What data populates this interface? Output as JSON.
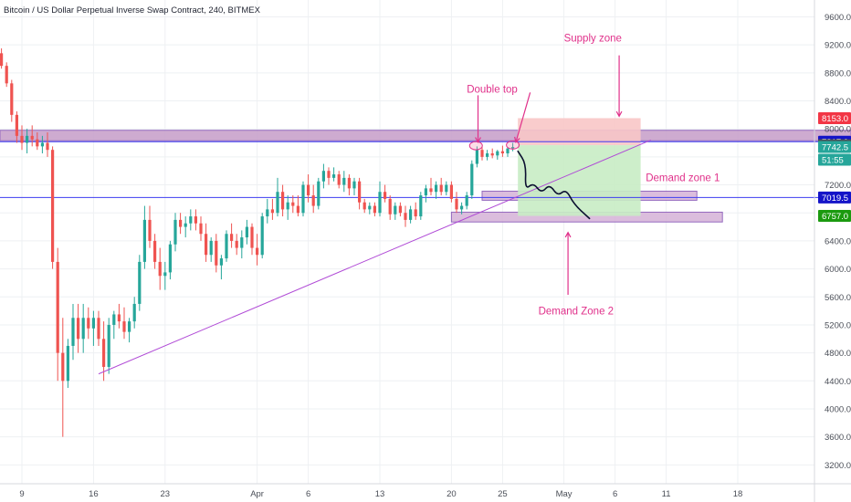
{
  "chart_data": {
    "type": "candlestick",
    "title": "Bitcoin / US Dollar Perpetual Inverse Swap Contract, 240, BITMEX",
    "y_ticks": [
      3200,
      3600,
      4000,
      4400,
      4800,
      5200,
      5600,
      6000,
      6400,
      6800,
      7200,
      7600,
      8000,
      8400,
      8800,
      9200,
      9600
    ],
    "x_ticks": [
      {
        "label": "9",
        "day": 0
      },
      {
        "label": "16",
        "day": 7
      },
      {
        "label": "23",
        "day": 14
      },
      {
        "label": "Apr",
        "day": 23
      },
      {
        "label": "6",
        "day": 28
      },
      {
        "label": "13",
        "day": 35
      },
      {
        "label": "20",
        "day": 42
      },
      {
        "label": "25",
        "day": 47
      },
      {
        "label": "May",
        "day": 53
      },
      {
        "label": "6",
        "day": 58
      },
      {
        "label": "11",
        "day": 63
      },
      {
        "label": "18",
        "day": 70
      }
    ],
    "price_tags": [
      {
        "label": "8153.0",
        "price": 8153,
        "color": "#f23645"
      },
      {
        "label": "7817.0",
        "price": 7817,
        "color": "#1414c8"
      },
      {
        "label": "7767.0",
        "price": 7767,
        "color": "#4a4e57"
      },
      {
        "label": "7742.5",
        "price": 7742.5,
        "color": "#26a69a"
      },
      {
        "label": "51:55",
        "price": 7560,
        "color": "#26a69a"
      },
      {
        "label": "7019.5",
        "price": 7019.5,
        "color": "#1414c8"
      },
      {
        "label": "6757.0",
        "price": 6757,
        "color": "#1b9a0f"
      }
    ],
    "horizontal_lines": [
      {
        "price": 7817,
        "color": "#3d3df0"
      },
      {
        "price": 7019.5,
        "color": "#3d3df0"
      }
    ],
    "zones": [
      {
        "price_top": 7980,
        "price_bottom": 7830,
        "day_start": -3,
        "day_end": 82,
        "fill": "#c9a3cc"
      },
      {
        "price_top": 7110,
        "price_bottom": 6980,
        "day_start": 45,
        "day_end": 66,
        "fill": "#d8b6da"
      },
      {
        "price_top": 6810,
        "price_bottom": 6670,
        "day_start": 42,
        "day_end": 68.5,
        "fill": "#d8b6da"
      },
      {
        "price_top": 8153,
        "price_bottom": 7767,
        "day_start": 48.5,
        "day_end": 60.5,
        "fill": "#f8c7c7"
      },
      {
        "price_top": 7767,
        "price_bottom": 6757,
        "day_start": 48.5,
        "day_end": 60.5,
        "fill": "#c8ecc4"
      }
    ],
    "trendline": {
      "day_start": 7.5,
      "price_start": 4500,
      "day_end": 61.5,
      "price_end": 7840,
      "color": "#b04ad6"
    },
    "path_sketch": [
      {
        "day": 48.5,
        "price": 7680
      },
      {
        "day": 49.3,
        "price": 7500
      },
      {
        "day": 49.2,
        "price": 7130
      },
      {
        "day": 50.0,
        "price": 7230
      },
      {
        "day": 50.8,
        "price": 7080
      },
      {
        "day": 51.6,
        "price": 7210
      },
      {
        "day": 52.4,
        "price": 7040
      },
      {
        "day": 53.2,
        "price": 7140
      },
      {
        "day": 54.0,
        "price": 6920
      },
      {
        "day": 55.5,
        "price": 6720
      }
    ],
    "ellipses": [
      {
        "day": 44.4,
        "price": 7760
      },
      {
        "day": 48.0,
        "price": 7770
      }
    ],
    "annotations": [
      {
        "text": "Supply zone",
        "day": 53,
        "price": 9250,
        "color": "#e0308a"
      },
      {
        "text": "Double top",
        "day": 43.5,
        "price": 8520,
        "color": "#e0308a"
      },
      {
        "text": "Demand zone 1",
        "day": 61,
        "price": 7250,
        "color": "#e0308a"
      },
      {
        "text": "Demand Zone 2",
        "day": 50.5,
        "price": 5350,
        "color": "#e0308a"
      }
    ],
    "arrows": [
      {
        "day_from": 58.4,
        "price_from": 9050,
        "day_to": 58.4,
        "price_to": 8180
      },
      {
        "day_from": 44.6,
        "price_from": 8480,
        "day_to": 44.6,
        "price_to": 7810
      },
      {
        "day_from": 49.7,
        "price_from": 8520,
        "day_to": 48.3,
        "price_to": 7810
      },
      {
        "day_from": 53.4,
        "price_from": 5630,
        "day_to": 53.4,
        "price_to": 6520
      }
    ],
    "candles": [
      {
        "day": -3.0,
        "o": 9100,
        "h": 9180,
        "l": 9050,
        "c": 9120
      },
      {
        "day": -2.5,
        "o": 9120,
        "h": 9200,
        "l": 9040,
        "c": 9080
      },
      {
        "day": -2.0,
        "o": 9080,
        "h": 9150,
        "l": 8860,
        "c": 8900
      },
      {
        "day": -1.5,
        "o": 8900,
        "h": 8950,
        "l": 8600,
        "c": 8650
      },
      {
        "day": -1.0,
        "o": 8650,
        "h": 8700,
        "l": 8100,
        "c": 8200
      },
      {
        "day": -0.5,
        "o": 8200,
        "h": 8250,
        "l": 7800,
        "c": 7900
      },
      {
        "day": 0.0,
        "o": 7900,
        "h": 8050,
        "l": 7700,
        "c": 7800
      },
      {
        "day": 0.5,
        "o": 7800,
        "h": 8000,
        "l": 7650,
        "c": 7900
      },
      {
        "day": 1.0,
        "o": 7900,
        "h": 8050,
        "l": 7750,
        "c": 7850
      },
      {
        "day": 1.5,
        "o": 7850,
        "h": 7950,
        "l": 7700,
        "c": 7750
      },
      {
        "day": 2.0,
        "o": 7750,
        "h": 7900,
        "l": 7650,
        "c": 7800
      },
      {
        "day": 2.5,
        "o": 7800,
        "h": 7950,
        "l": 7600,
        "c": 7700
      },
      {
        "day": 3.0,
        "o": 7700,
        "h": 7750,
        "l": 6000,
        "c": 6100
      },
      {
        "day": 3.5,
        "o": 6100,
        "h": 6300,
        "l": 4400,
        "c": 4800
      },
      {
        "day": 4.0,
        "o": 4800,
        "h": 5300,
        "l": 3600,
        "c": 4400
      },
      {
        "day": 4.5,
        "o": 4400,
        "h": 5000,
        "l": 4300,
        "c": 4900
      },
      {
        "day": 5.0,
        "o": 4900,
        "h": 5500,
        "l": 4700,
        "c": 5300
      },
      {
        "day": 5.5,
        "o": 5300,
        "h": 5500,
        "l": 4800,
        "c": 5000
      },
      {
        "day": 6.0,
        "o": 5000,
        "h": 5500,
        "l": 4800,
        "c": 5300
      },
      {
        "day": 6.5,
        "o": 5300,
        "h": 5450,
        "l": 5000,
        "c": 5150
      },
      {
        "day": 7.0,
        "o": 5150,
        "h": 5400,
        "l": 4900,
        "c": 5300
      },
      {
        "day": 7.5,
        "o": 5300,
        "h": 5400,
        "l": 4900,
        "c": 5000
      },
      {
        "day": 8.0,
        "o": 5000,
        "h": 5250,
        "l": 4400,
        "c": 4600
      },
      {
        "day": 8.5,
        "o": 4600,
        "h": 5300,
        "l": 4500,
        "c": 5200
      },
      {
        "day": 9.0,
        "o": 5200,
        "h": 5400,
        "l": 5000,
        "c": 5350
      },
      {
        "day": 9.5,
        "o": 5350,
        "h": 5500,
        "l": 5150,
        "c": 5250
      },
      {
        "day": 10.0,
        "o": 5250,
        "h": 5450,
        "l": 5000,
        "c": 5100
      },
      {
        "day": 10.5,
        "o": 5100,
        "h": 5300,
        "l": 4950,
        "c": 5250
      },
      {
        "day": 11.0,
        "o": 5250,
        "h": 5600,
        "l": 5150,
        "c": 5500
      },
      {
        "day": 11.5,
        "o": 5500,
        "h": 6200,
        "l": 5400,
        "c": 6100
      },
      {
        "day": 12.0,
        "o": 6100,
        "h": 6900,
        "l": 6000,
        "c": 6700
      },
      {
        "day": 12.5,
        "o": 6700,
        "h": 6900,
        "l": 6300,
        "c": 6400
      },
      {
        "day": 13.0,
        "o": 6400,
        "h": 6500,
        "l": 6000,
        "c": 6100
      },
      {
        "day": 13.5,
        "o": 6100,
        "h": 6300,
        "l": 5700,
        "c": 5900
      },
      {
        "day": 14.0,
        "o": 5900,
        "h": 6100,
        "l": 5700,
        "c": 5950
      },
      {
        "day": 14.5,
        "o": 5950,
        "h": 6400,
        "l": 5850,
        "c": 6350
      },
      {
        "day": 15.0,
        "o": 6350,
        "h": 6800,
        "l": 6250,
        "c": 6700
      },
      {
        "day": 15.5,
        "o": 6700,
        "h": 6800,
        "l": 6500,
        "c": 6600
      },
      {
        "day": 16.0,
        "o": 6600,
        "h": 6750,
        "l": 6450,
        "c": 6650
      },
      {
        "day": 16.5,
        "o": 6650,
        "h": 6850,
        "l": 6550,
        "c": 6750
      },
      {
        "day": 17.0,
        "o": 6750,
        "h": 6850,
        "l": 6550,
        "c": 6650
      },
      {
        "day": 17.5,
        "o": 6650,
        "h": 6750,
        "l": 6400,
        "c": 6500
      },
      {
        "day": 18.0,
        "o": 6500,
        "h": 6650,
        "l": 6100,
        "c": 6200
      },
      {
        "day": 18.5,
        "o": 6200,
        "h": 6450,
        "l": 6100,
        "c": 6400
      },
      {
        "day": 19.0,
        "o": 6400,
        "h": 6500,
        "l": 5950,
        "c": 6050
      },
      {
        "day": 19.5,
        "o": 6050,
        "h": 6200,
        "l": 5850,
        "c": 6150
      },
      {
        "day": 20.0,
        "o": 6150,
        "h": 6550,
        "l": 6100,
        "c": 6500
      },
      {
        "day": 20.5,
        "o": 6500,
        "h": 6650,
        "l": 6300,
        "c": 6400
      },
      {
        "day": 21.0,
        "o": 6400,
        "h": 6500,
        "l": 6200,
        "c": 6300
      },
      {
        "day": 21.5,
        "o": 6300,
        "h": 6550,
        "l": 6150,
        "c": 6450
      },
      {
        "day": 22.0,
        "o": 6450,
        "h": 6700,
        "l": 6350,
        "c": 6600
      },
      {
        "day": 22.5,
        "o": 6600,
        "h": 6650,
        "l": 6200,
        "c": 6300
      },
      {
        "day": 23.0,
        "o": 6300,
        "h": 6500,
        "l": 6050,
        "c": 6200
      },
      {
        "day": 23.5,
        "o": 6200,
        "h": 6800,
        "l": 6150,
        "c": 6750
      },
      {
        "day": 24.0,
        "o": 6750,
        "h": 7000,
        "l": 6650,
        "c": 6850
      },
      {
        "day": 24.5,
        "o": 6850,
        "h": 7000,
        "l": 6700,
        "c": 6800
      },
      {
        "day": 25.0,
        "o": 6800,
        "h": 7300,
        "l": 6750,
        "c": 7100
      },
      {
        "day": 25.5,
        "o": 7100,
        "h": 7200,
        "l": 6750,
        "c": 6850
      },
      {
        "day": 26.0,
        "o": 6850,
        "h": 7050,
        "l": 6700,
        "c": 6950
      },
      {
        "day": 26.5,
        "o": 6950,
        "h": 7050,
        "l": 6800,
        "c": 6900
      },
      {
        "day": 27.0,
        "o": 6900,
        "h": 7050,
        "l": 6750,
        "c": 6800
      },
      {
        "day": 27.5,
        "o": 6800,
        "h": 7250,
        "l": 6750,
        "c": 7200
      },
      {
        "day": 28.0,
        "o": 7200,
        "h": 7350,
        "l": 6950,
        "c": 7050
      },
      {
        "day": 28.5,
        "o": 7050,
        "h": 7200,
        "l": 6800,
        "c": 6900
      },
      {
        "day": 29.0,
        "o": 6900,
        "h": 7300,
        "l": 6850,
        "c": 7250
      },
      {
        "day": 29.5,
        "o": 7250,
        "h": 7500,
        "l": 7150,
        "c": 7400
      },
      {
        "day": 30.0,
        "o": 7400,
        "h": 7450,
        "l": 7200,
        "c": 7300
      },
      {
        "day": 30.5,
        "o": 7300,
        "h": 7450,
        "l": 7250,
        "c": 7350
      },
      {
        "day": 31.0,
        "o": 7350,
        "h": 7400,
        "l": 7150,
        "c": 7200
      },
      {
        "day": 31.5,
        "o": 7200,
        "h": 7400,
        "l": 7100,
        "c": 7300
      },
      {
        "day": 32.0,
        "o": 7300,
        "h": 7350,
        "l": 7050,
        "c": 7150
      },
      {
        "day": 32.5,
        "o": 7150,
        "h": 7300,
        "l": 7050,
        "c": 7250
      },
      {
        "day": 33.0,
        "o": 7250,
        "h": 7300,
        "l": 6850,
        "c": 6950
      },
      {
        "day": 33.5,
        "o": 6950,
        "h": 7000,
        "l": 6800,
        "c": 6850
      },
      {
        "day": 34.0,
        "o": 6850,
        "h": 6950,
        "l": 6780,
        "c": 6900
      },
      {
        "day": 34.5,
        "o": 6900,
        "h": 6950,
        "l": 6750,
        "c": 6800
      },
      {
        "day": 35.0,
        "o": 6800,
        "h": 7250,
        "l": 6750,
        "c": 7100
      },
      {
        "day": 35.5,
        "o": 7100,
        "h": 7200,
        "l": 6950,
        "c": 7000
      },
      {
        "day": 36.0,
        "o": 7000,
        "h": 7050,
        "l": 6700,
        "c": 6780
      },
      {
        "day": 36.5,
        "o": 6780,
        "h": 6950,
        "l": 6700,
        "c": 6900
      },
      {
        "day": 37.0,
        "o": 6900,
        "h": 6950,
        "l": 6750,
        "c": 6800
      },
      {
        "day": 37.5,
        "o": 6800,
        "h": 6900,
        "l": 6600,
        "c": 6700
      },
      {
        "day": 38.0,
        "o": 6700,
        "h": 6900,
        "l": 6650,
        "c": 6850
      },
      {
        "day": 38.5,
        "o": 6850,
        "h": 6950,
        "l": 6700,
        "c": 6750
      },
      {
        "day": 39.0,
        "o": 6750,
        "h": 7100,
        "l": 6700,
        "c": 7050
      },
      {
        "day": 39.5,
        "o": 7050,
        "h": 7200,
        "l": 6950,
        "c": 7150
      },
      {
        "day": 40.0,
        "o": 7150,
        "h": 7300,
        "l": 7050,
        "c": 7100
      },
      {
        "day": 40.5,
        "o": 7100,
        "h": 7250,
        "l": 7000,
        "c": 7200
      },
      {
        "day": 41.0,
        "o": 7200,
        "h": 7300,
        "l": 7050,
        "c": 7100
      },
      {
        "day": 41.5,
        "o": 7100,
        "h": 7250,
        "l": 7050,
        "c": 7200
      },
      {
        "day": 42.0,
        "o": 7200,
        "h": 7250,
        "l": 6950,
        "c": 7000
      },
      {
        "day": 42.5,
        "o": 7000,
        "h": 7100,
        "l": 6800,
        "c": 6850
      },
      {
        "day": 43.0,
        "o": 6850,
        "h": 6950,
        "l": 6780,
        "c": 6900
      },
      {
        "day": 43.5,
        "o": 6900,
        "h": 7100,
        "l": 6850,
        "c": 7050
      },
      {
        "day": 44.0,
        "o": 7050,
        "h": 7550,
        "l": 7000,
        "c": 7500
      },
      {
        "day": 44.5,
        "o": 7500,
        "h": 7750,
        "l": 7450,
        "c": 7700
      },
      {
        "day": 45.0,
        "o": 7700,
        "h": 7750,
        "l": 7550,
        "c": 7600
      },
      {
        "day": 45.5,
        "o": 7600,
        "h": 7700,
        "l": 7550,
        "c": 7650
      },
      {
        "day": 46.0,
        "o": 7650,
        "h": 7720,
        "l": 7580,
        "c": 7620
      },
      {
        "day": 46.5,
        "o": 7620,
        "h": 7700,
        "l": 7560,
        "c": 7680
      },
      {
        "day": 47.0,
        "o": 7680,
        "h": 7760,
        "l": 7600,
        "c": 7650
      },
      {
        "day": 47.5,
        "o": 7650,
        "h": 7740,
        "l": 7600,
        "c": 7720
      },
      {
        "day": 48.0,
        "o": 7720,
        "h": 7800,
        "l": 7680,
        "c": 7740
      }
    ]
  }
}
